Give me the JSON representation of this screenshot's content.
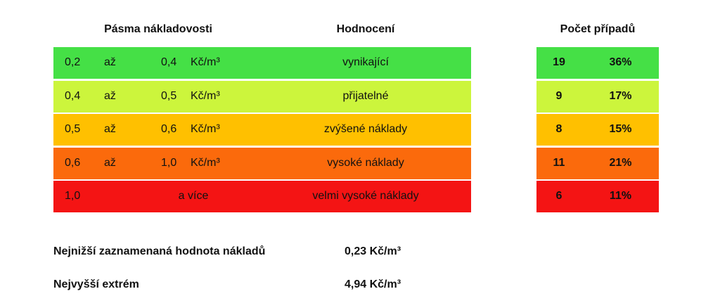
{
  "header": {
    "ranges": "Pásma nákladovosti",
    "rating": "Hodnocení",
    "count": "Počet případů"
  },
  "table": {
    "rows": [
      {
        "from": "0,2",
        "to_word": "až",
        "to": "0,4",
        "unit": "Kč/m³",
        "rating": "vynikající",
        "count": 19,
        "share": "36%",
        "color": "#45e046"
      },
      {
        "from": "0,4",
        "to_word": "až",
        "to": "0,5",
        "unit": "Kč/m³",
        "rating": "přijatelné",
        "count": 9,
        "share": "17%",
        "color": "#ccf53c"
      },
      {
        "from": "0,5",
        "to_word": "až",
        "to": "0,6",
        "unit": "Kč/m³",
        "rating": "zvýšené náklady",
        "count": 8,
        "share": "15%",
        "color": "#ffc000"
      },
      {
        "from": "0,6",
        "to_word": "až",
        "to": "1,0",
        "unit": "Kč/m³",
        "rating": "vysoké náklady",
        "count": 11,
        "share": "21%",
        "color": "#fb6a0c"
      },
      {
        "from": "1,0",
        "to_word": "a více",
        "rating": "velmi vysoké náklady",
        "count": 6,
        "share": "11%",
        "color": "#f41414"
      }
    ]
  },
  "summary": [
    {
      "label": "Nejnižší zaznamenaná hodnota nákladů",
      "value": "0,23 Kč/m³"
    },
    {
      "label": "Nejvyšší extrém",
      "value": "4,94 Kč/m³"
    }
  ]
}
